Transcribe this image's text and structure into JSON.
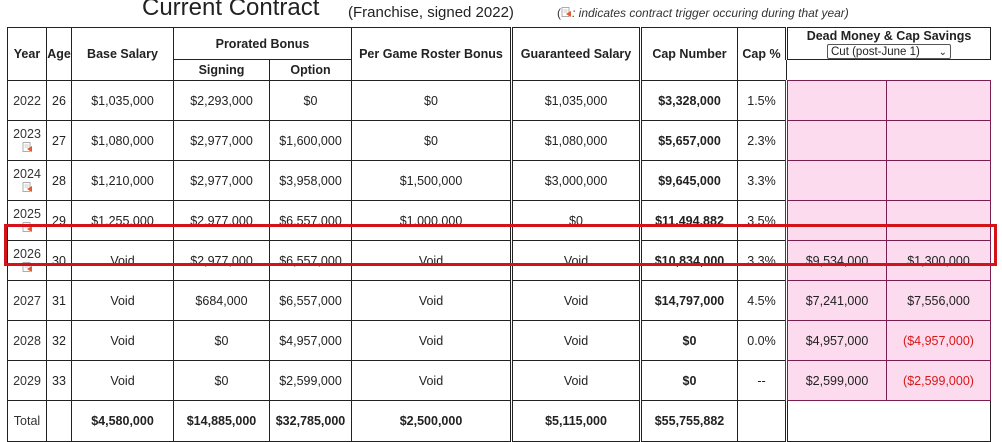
{
  "title": {
    "main": "Current Contract",
    "sub": "(Franchise, signed 2022)",
    "note_open": "(",
    "note_text": ": indicates contract trigger occuring during that year)"
  },
  "headers": {
    "year": "Year",
    "age": "Age",
    "base": "Base Salary",
    "prorated": "Prorated Bonus",
    "signing": "Signing",
    "option": "Option",
    "roster": "Per Game Roster Bonus",
    "guaranteed": "Guaranteed Salary",
    "cap_number": "Cap Number",
    "cap_pct": "Cap %",
    "dead": "Dead Money & Cap Savings",
    "dropdown_selected": "Cut (post-June 1)"
  },
  "rows": [
    {
      "year": "2022",
      "age": "26",
      "base": "$1,035,000",
      "signing": "$2,293,000",
      "option": "$0",
      "roster": "$0",
      "guaranteed": "$1,035,000",
      "cap": "$3,328,000",
      "pct": "1.5%",
      "dead": "",
      "savings": ""
    },
    {
      "year": "2023",
      "age": "27",
      "base": "$1,080,000",
      "signing": "$2,977,000",
      "option": "$1,600,000",
      "roster": "$0",
      "guaranteed": "$1,080,000",
      "cap": "$5,657,000",
      "pct": "2.3%",
      "dead": "",
      "savings": ""
    },
    {
      "year": "2024",
      "age": "28",
      "base": "$1,210,000",
      "signing": "$2,977,000",
      "option": "$3,958,000",
      "roster": "$1,500,000",
      "guaranteed": "$3,000,000",
      "cap": "$9,645,000",
      "pct": "3.3%",
      "dead": "",
      "savings": ""
    },
    {
      "year": "2025",
      "age": "29",
      "base": "$1,255,000",
      "signing": "$2,977,000",
      "option": "$6,557,000",
      "roster": "$1,000,000",
      "guaranteed": "$0",
      "cap": "$11,494,882",
      "pct": "3.5%",
      "dead": "",
      "savings": ""
    },
    {
      "year": "2026",
      "age": "30",
      "base": "Void",
      "signing": "$2,977,000",
      "option": "$6,557,000",
      "roster": "Void",
      "guaranteed": "Void",
      "cap": "$10,834,000",
      "pct": "3.3%",
      "dead": "$9,534,000",
      "savings": "$1,300,000"
    },
    {
      "year": "2027",
      "age": "31",
      "base": "Void",
      "signing": "$684,000",
      "option": "$6,557,000",
      "roster": "Void",
      "guaranteed": "Void",
      "cap": "$14,797,000",
      "pct": "4.5%",
      "dead": "$7,241,000",
      "savings": "$7,556,000"
    },
    {
      "year": "2028",
      "age": "32",
      "base": "Void",
      "signing": "$0",
      "option": "$4,957,000",
      "roster": "Void",
      "guaranteed": "Void",
      "cap": "$0",
      "pct": "0.0%",
      "dead": "$4,957,000",
      "savings": "($4,957,000)"
    },
    {
      "year": "2029",
      "age": "33",
      "base": "Void",
      "signing": "$0",
      "option": "$2,599,000",
      "roster": "Void",
      "guaranteed": "Void",
      "cap": "$0",
      "pct": "--",
      "dead": "$2,599,000",
      "savings": "($2,599,000)"
    }
  ],
  "total": {
    "label": "Total",
    "base": "$4,580,000",
    "signing": "$14,885,000",
    "option": "$32,785,000",
    "roster": "$2,500,000",
    "guaranteed": "$5,115,000",
    "cap": "$55,755,882"
  },
  "colors": {
    "highlight_border": "#d4121a",
    "dead_bg": "#fbdbed",
    "negative": "#d91818"
  },
  "icons": {
    "trigger": "contract-trigger-icon",
    "dropdown": "chevron-down-icon"
  }
}
